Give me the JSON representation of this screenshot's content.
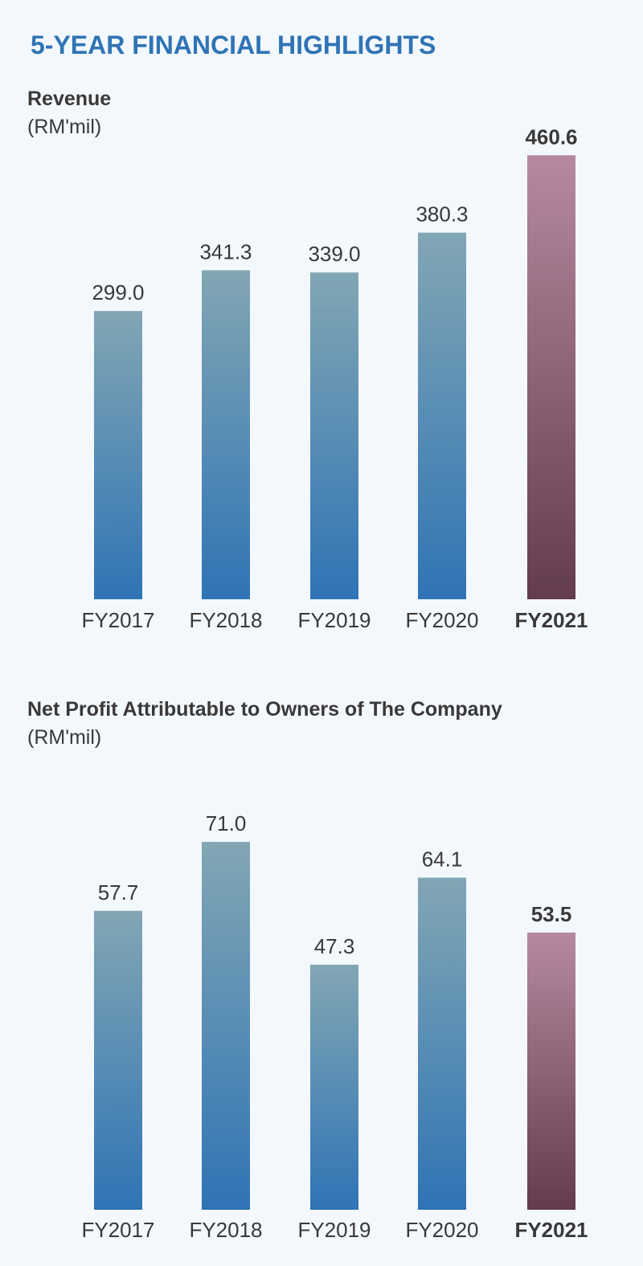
{
  "page_title": "5-YEAR FINANCIAL HIGHLIGHTS",
  "colors": {
    "title": "#2f74b5",
    "bar_top": "#82a6b4",
    "bar_bottom": "#2f74b5",
    "highlight_top": "#b689a0",
    "highlight_bottom": "#633c4c",
    "background": "#f3f8fc"
  },
  "chart_data": [
    {
      "type": "bar",
      "title": "Revenue",
      "ylabel": "(RM'mil)",
      "categories": [
        "FY2017",
        "FY2018",
        "FY2019",
        "FY2020",
        "FY2021"
      ],
      "values": [
        299.0,
        341.3,
        339.0,
        380.3,
        460.6
      ],
      "labels": [
        "299.0",
        "341.3",
        "339.0",
        "380.3",
        "460.6"
      ],
      "highlight": "FY2021",
      "grid": false
    },
    {
      "type": "bar",
      "title": "Net Profit Attributable to Owners of The Company",
      "ylabel": "(RM'mil)",
      "categories": [
        "FY2017",
        "FY2018",
        "FY2019",
        "FY2020",
        "FY2021"
      ],
      "values": [
        57.7,
        71.0,
        47.3,
        64.1,
        53.5
      ],
      "labels": [
        "57.7",
        "71.0",
        "47.3",
        "64.1",
        "53.5"
      ],
      "highlight": "FY2021",
      "grid": false
    }
  ]
}
